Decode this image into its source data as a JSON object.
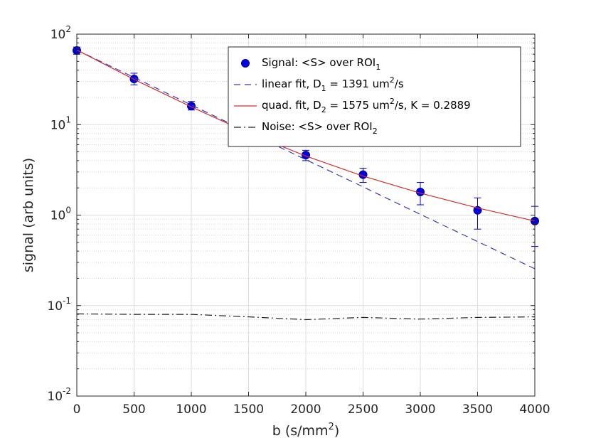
{
  "chart_data": {
    "type": "line",
    "title": "",
    "xlabel": {
      "text": "b (s/mm",
      "sup": "2",
      "tail": ")"
    },
    "ylabel": "signal (arb units)",
    "xlim": [
      0,
      4000
    ],
    "ylim": [
      0.01,
      100
    ],
    "yscale": "log",
    "grid": true,
    "legend_position": "top-right",
    "x_ticks": [
      "0",
      "500",
      "1000",
      "1500",
      "2000",
      "2500",
      "3000",
      "3500",
      "4000"
    ],
    "x_tick_values": [
      0,
      500,
      1000,
      1500,
      2000,
      2500,
      3000,
      3500,
      4000
    ],
    "y_ticks": [
      {
        "value": 100,
        "base": "10",
        "exp": "2"
      },
      {
        "value": 10,
        "base": "10",
        "exp": "1"
      },
      {
        "value": 1,
        "base": "10",
        "exp": "0"
      },
      {
        "value": 0.1,
        "base": "10",
        "exp": "-1"
      },
      {
        "value": 0.01,
        "base": "10",
        "exp": "-2"
      }
    ],
    "series": [
      {
        "name": "signal",
        "legend": {
          "text": "Signal: <S> over ROI",
          "sub": "1",
          "tail": ""
        },
        "kind": "errorbar",
        "color": "#0000e6",
        "x": [
          0,
          500,
          1000,
          2000,
          2500,
          3000,
          3500,
          4000
        ],
        "y": [
          66,
          32,
          16,
          4.6,
          2.8,
          1.8,
          1.13,
          0.86
        ],
        "err_low": [
          60,
          27.5,
          14.5,
          4.0,
          2.3,
          1.3,
          0.7,
          0.45
        ],
        "err_high": [
          72,
          37,
          18,
          5.2,
          3.3,
          2.3,
          1.55,
          1.25
        ]
      },
      {
        "name": "linear-fit",
        "legend": {
          "text": "linear fit, D",
          "sub": "1",
          "tail": " = 1391 um",
          "sup": "2",
          "tail2": "/s"
        },
        "kind": "line",
        "color": "#3a3ab5",
        "dash": "9,6",
        "x": [
          0,
          500,
          1000,
          1500,
          2000,
          2500,
          3000,
          3500,
          4000
        ],
        "y": [
          66.8,
          33.2,
          16.5,
          8.2,
          4.1,
          2.05,
          1.02,
          0.51,
          0.255
        ]
      },
      {
        "name": "quad-fit",
        "legend": {
          "text": "quad. fit, D",
          "sub": "2",
          "tail": " = 1575 um",
          "sup": "2",
          "tail2": "/s, K = 0.2889"
        },
        "kind": "line",
        "color": "#d03030",
        "dash": "",
        "x": [
          0,
          500,
          1000,
          1500,
          2000,
          2500,
          3000,
          3500,
          4000
        ],
        "y": [
          66.8,
          31.6,
          15.7,
          8.1,
          4.5,
          2.7,
          1.75,
          1.2,
          0.86
        ]
      },
      {
        "name": "noise",
        "legend": {
          "text": "Noise: <S> over ROI",
          "sub": "2",
          "tail": ""
        },
        "kind": "line",
        "color": "#222222",
        "dash": "10,4,2,4",
        "x": [
          0,
          500,
          1000,
          1500,
          2000,
          2500,
          3000,
          3500,
          4000
        ],
        "y": [
          0.081,
          0.08,
          0.08,
          0.075,
          0.07,
          0.074,
          0.071,
          0.074,
          0.075
        ]
      }
    ]
  }
}
